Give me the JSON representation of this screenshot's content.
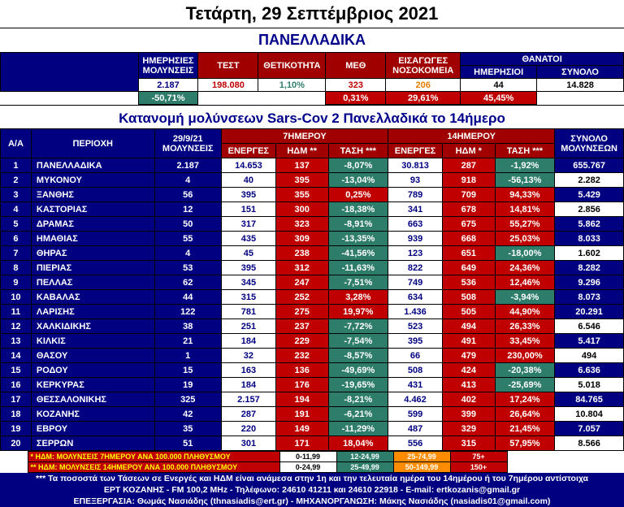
{
  "title": "Τετάρτη, 29 Σεπτέμβριος 2021",
  "subtitle": "ΠΑΝΕΛΛΑΔΙΚΑ",
  "subtitle2": "Κατανομή μολύνσεων Sars-Cov 2 Πανελλαδικά το 14ήμερο",
  "summary": {
    "headers": {
      "daily_inf_l1": "ΗΜΕΡΗΣΙΕΣ",
      "daily_inf_l2": "ΜΟΛΥΝΣΕΙΣ",
      "tests": "ΤΕΣΤ",
      "positivity": "ΘΕΤΙΚΟΤΗΤΑ",
      "icu": "ΜΕΘ",
      "admissions_l1": "ΕΙΣΑΓΩΓΕΣ",
      "admissions_l2": "ΝΟΣΟΚΟΜΕΙΑ",
      "deaths": "ΘΑΝΑΤΟΙ",
      "deaths_daily": "ΗΜΕΡΗΣΙΟΙ",
      "deaths_total": "ΣΥΝΟΛΟ"
    },
    "values": {
      "daily_inf": "2.187",
      "tests": "198.080",
      "positivity": "1,10%",
      "icu": "323",
      "admissions": "206",
      "deaths_daily": "44",
      "deaths_total": "14.828",
      "daily_inf_pct": "-50,71%",
      "icu_pct": "0,31%",
      "admissions_pct": "29,61%",
      "deaths_daily_pct": "45,45%"
    }
  },
  "table_headers": {
    "aa": "Α/Α",
    "region": "ΠΕΡΙΟΧΗ",
    "date_l1": "29/9/21",
    "date_l2": "ΜΟΛΥΝΣΕΙΣ",
    "w7": "7ΗΜΕΡΟΥ",
    "w14": "14ΗΜΕΡΟΥ",
    "active": "ΕΝΕΡΓΕΣ",
    "hdm7": "ΗΔΜ **",
    "hdm14": "ΗΔΜ *",
    "trend": "ΤΑΣΗ ***",
    "total_l1": "ΣΥΝΟΛΟ",
    "total_l2": "ΜΟΛΥΝΣΕΩΝ"
  },
  "rows": [
    {
      "n": "1",
      "region": "ΠΑΝΕΛΛΑΔΙΚΑ",
      "inf": "2.187",
      "a7": "14.653",
      "h7": "137",
      "h7c": "r",
      "t7": "-8,07%",
      "t7c": "g",
      "a14": "30.813",
      "h14": "287",
      "h14c": "r",
      "t14": "-1,92%",
      "t14c": "g",
      "tot": "655.767",
      "totc": "n"
    },
    {
      "n": "2",
      "region": "ΜΥΚΟΝΟΥ",
      "inf": "4",
      "a7": "40",
      "h7": "395",
      "h7c": "r",
      "t7": "-13,04%",
      "t7c": "g",
      "a14": "93",
      "h14": "918",
      "h14c": "r",
      "t14": "-56,13%",
      "t14c": "g",
      "tot": "2.282",
      "totc": "w"
    },
    {
      "n": "3",
      "region": "ΞΑΝΘΗΣ",
      "inf": "56",
      "a7": "395",
      "h7": "355",
      "h7c": "r",
      "t7": "0,25%",
      "t7c": "r",
      "a14": "789",
      "h14": "709",
      "h14c": "r",
      "t14": "94,33%",
      "t14c": "r",
      "tot": "5.429",
      "totc": "n"
    },
    {
      "n": "4",
      "region": "ΚΑΣΤΟΡΙΑΣ",
      "inf": "12",
      "a7": "151",
      "h7": "300",
      "h7c": "r",
      "t7": "-18,38%",
      "t7c": "g",
      "a14": "341",
      "h14": "678",
      "h14c": "r",
      "t14": "14,81%",
      "t14c": "r",
      "tot": "2.856",
      "totc": "w"
    },
    {
      "n": "5",
      "region": "ΔΡΑΜΑΣ",
      "inf": "50",
      "a7": "317",
      "h7": "323",
      "h7c": "r",
      "t7": "-8,91%",
      "t7c": "g",
      "a14": "663",
      "h14": "675",
      "h14c": "r",
      "t14": "55,27%",
      "t14c": "r",
      "tot": "5.862",
      "totc": "n"
    },
    {
      "n": "6",
      "region": "ΗΜΑΘΙΑΣ",
      "inf": "55",
      "a7": "435",
      "h7": "309",
      "h7c": "r",
      "t7": "-13,35%",
      "t7c": "g",
      "a14": "939",
      "h14": "668",
      "h14c": "r",
      "t14": "25,03%",
      "t14c": "r",
      "tot": "8.033",
      "totc": "n"
    },
    {
      "n": "7",
      "region": "ΘΗΡΑΣ",
      "inf": "4",
      "a7": "45",
      "h7": "238",
      "h7c": "r",
      "t7": "-41,56%",
      "t7c": "g",
      "a14": "123",
      "h14": "651",
      "h14c": "r",
      "t14": "-18,00%",
      "t14c": "g",
      "tot": "1.602",
      "totc": "w"
    },
    {
      "n": "8",
      "region": "ΠΙΕΡΙΑΣ",
      "inf": "53",
      "a7": "395",
      "h7": "312",
      "h7c": "r",
      "t7": "-11,63%",
      "t7c": "g",
      "a14": "822",
      "h14": "649",
      "h14c": "r",
      "t14": "24,36%",
      "t14c": "r",
      "tot": "8.282",
      "totc": "n"
    },
    {
      "n": "9",
      "region": "ΠΕΛΛΑΣ",
      "inf": "62",
      "a7": "345",
      "h7": "247",
      "h7c": "r",
      "t7": "-7,51%",
      "t7c": "g",
      "a14": "749",
      "h14": "536",
      "h14c": "r",
      "t14": "12,46%",
      "t14c": "r",
      "tot": "9.296",
      "totc": "n"
    },
    {
      "n": "10",
      "region": "ΚΑΒΑΛΑΣ",
      "inf": "44",
      "a7": "315",
      "h7": "252",
      "h7c": "r",
      "t7": "3,28%",
      "t7c": "r",
      "a14": "634",
      "h14": "508",
      "h14c": "r",
      "t14": "-3,94%",
      "t14c": "g",
      "tot": "8.073",
      "totc": "n"
    },
    {
      "n": "11",
      "region": "ΛΑΡΙΣΗΣ",
      "inf": "122",
      "a7": "781",
      "h7": "275",
      "h7c": "r",
      "t7": "19,97%",
      "t7c": "r",
      "a14": "1.436",
      "h14": "505",
      "h14c": "r",
      "t14": "44,90%",
      "t14c": "r",
      "tot": "20.291",
      "totc": "n"
    },
    {
      "n": "12",
      "region": "ΧΑΛΚΙΔΙΚΗΣ",
      "inf": "38",
      "a7": "251",
      "h7": "237",
      "h7c": "r",
      "t7": "-7,72%",
      "t7c": "g",
      "a14": "523",
      "h14": "494",
      "h14c": "r",
      "t14": "26,33%",
      "t14c": "r",
      "tot": "6.546",
      "totc": "w"
    },
    {
      "n": "13",
      "region": "ΚΙΛΚΙΣ",
      "inf": "21",
      "a7": "184",
      "h7": "229",
      "h7c": "r",
      "t7": "-7,54%",
      "t7c": "g",
      "a14": "395",
      "h14": "491",
      "h14c": "r",
      "t14": "33,45%",
      "t14c": "r",
      "tot": "5.417",
      "totc": "n"
    },
    {
      "n": "14",
      "region": "ΘΑΣΟΥ",
      "inf": "1",
      "a7": "32",
      "h7": "232",
      "h7c": "r",
      "t7": "-8,57%",
      "t7c": "g",
      "a14": "66",
      "h14": "479",
      "h14c": "r",
      "t14": "230,00%",
      "t14c": "r",
      "tot": "494",
      "totc": "w"
    },
    {
      "n": "15",
      "region": "ΡΟΔΟΥ",
      "inf": "15",
      "a7": "163",
      "h7": "136",
      "h7c": "r",
      "t7": "-49,69%",
      "t7c": "g",
      "a14": "508",
      "h14": "424",
      "h14c": "r",
      "t14": "-20,38%",
      "t14c": "g",
      "tot": "6.636",
      "totc": "n"
    },
    {
      "n": "16",
      "region": "ΚΕΡΚΥΡΑΣ",
      "inf": "19",
      "a7": "184",
      "h7": "176",
      "h7c": "r",
      "t7": "-19,65%",
      "t7c": "g",
      "a14": "431",
      "h14": "413",
      "h14c": "r",
      "t14": "-25,69%",
      "t14c": "g",
      "tot": "5.018",
      "totc": "w"
    },
    {
      "n": "17",
      "region": "ΘΕΣΣΑΛΟΝΙΚΗΣ",
      "inf": "325",
      "a7": "2.157",
      "h7": "194",
      "h7c": "r",
      "t7": "-8,21%",
      "t7c": "g",
      "a14": "4.462",
      "h14": "402",
      "h14c": "r",
      "t14": "17,24%",
      "t14c": "r",
      "tot": "84.765",
      "totc": "n"
    },
    {
      "n": "18",
      "region": "ΚΟΖΑΝΗΣ",
      "inf": "42",
      "a7": "287",
      "h7": "191",
      "h7c": "r",
      "t7": "-6,21%",
      "t7c": "g",
      "a14": "599",
      "h14": "399",
      "h14c": "r",
      "t14": "26,64%",
      "t14c": "r",
      "tot": "10.804",
      "totc": "w"
    },
    {
      "n": "19",
      "region": "ΕΒΡΟΥ",
      "inf": "35",
      "a7": "220",
      "h7": "149",
      "h7c": "r",
      "t7": "-11,29%",
      "t7c": "g",
      "a14": "487",
      "h14": "329",
      "h14c": "r",
      "t14": "21,45%",
      "t14c": "r",
      "tot": "7.057",
      "totc": "n"
    },
    {
      "n": "20",
      "region": "ΣΕΡΡΩΝ",
      "inf": "51",
      "a7": "301",
      "h7": "171",
      "h7c": "r",
      "t7": "18,04%",
      "t7c": "r",
      "a14": "556",
      "h14": "315",
      "h14c": "r",
      "t14": "57,95%",
      "t14c": "r",
      "tot": "8.566",
      "totc": "w"
    }
  ],
  "legend": {
    "line1_label": "* ΗΔΜ: ΜΟΛΥΝΣΕΙΣ 7ΗΜΕΡΟΥ ΑΝΑ 100.000 ΠΛΗΘΥΣΜΟΥ",
    "line2_label": "** ΗΔΜ: ΜΟΛΥΝΣΕΙΣ 14ΗΜΕΡΟΥ ΑΝΑ 100.000 ΠΛΗΘΥΣΜΟΥ",
    "r1": [
      "0-11,99",
      "12-24,99",
      "25-74,99",
      "75+"
    ],
    "r2": [
      "0-24,99",
      "25-49,99",
      "50-149,99",
      "150+"
    ]
  },
  "footer": {
    "l1": "*** Τα ποσοστά των Τάσεων σε Ενεργές και ΗΔΜ είναι ανάμεσα στην 1η και την τελευταία ημέρα του 14ημέρου ή του 7ημέρου αντίστοιχα",
    "l2": "ΕΡΤ ΚΟΖΑΝΗΣ - FM 100,2 MHz - Τηλέφωνο:  24610 41211 και 24610 22918 - E-mail:  ertkozanis@gmail.gr",
    "l3": "ΕΠΕΞΕΡΓΑΣΙΑ: Θωμάς Νασιάδης (thnasiadis@ert.gr) - ΜΗΧΑΝΟΡΓΑΝΩΣΗ:  Μάκης Νασιάδης (nasiadis01@gmail.com)"
  },
  "colors": {
    "navy": "#000080",
    "darkred": "#a00000",
    "red": "#c00000",
    "green": "#2e7d6b",
    "orange": "#ff8c00",
    "white": "#ffffff"
  }
}
